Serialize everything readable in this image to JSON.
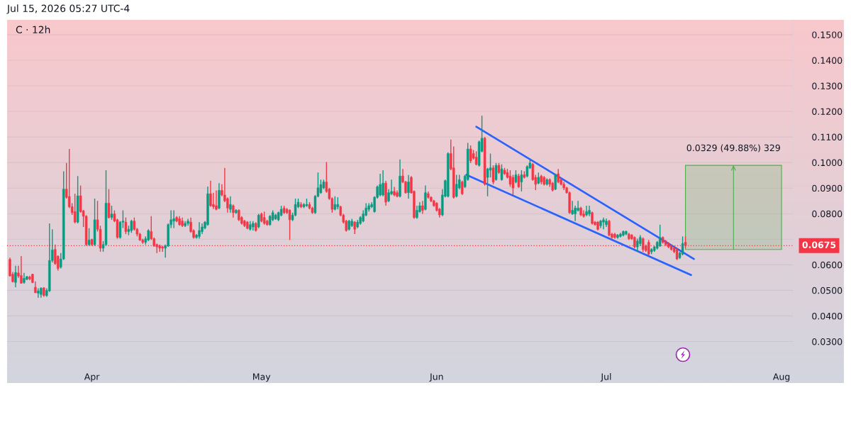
{
  "chart_data": {
    "type": "candlestick",
    "title": "C · 12h",
    "annotations": [
      "Jul 15, 2026 05:27 UTC-4"
    ],
    "x": [
      "2026-03-17T12:00",
      "2026-03-18",
      "2026-03-18T12:00",
      "2026-03-19",
      "2026-03-19T12:00",
      "2026-03-20",
      "2026-03-20T12:00",
      "2026-03-21",
      "2026-03-21T12:00",
      "2026-03-22",
      "2026-03-22T12:00",
      "2026-03-23",
      "2026-03-23T12:00",
      "2026-03-24",
      "2026-03-24T12:00",
      "2026-03-25",
      "2026-03-25T12:00",
      "2026-03-26",
      "2026-03-26T12:00",
      "2026-03-27",
      "2026-03-27T12:00",
      "2026-03-28",
      "2026-03-28T12:00",
      "2026-03-29",
      "2026-03-29T12:00",
      "2026-03-30",
      "2026-03-30T12:00",
      "2026-03-31",
      "2026-03-31T12:00",
      "2026-04-01",
      "2026-04-01T12:00",
      "2026-04-02",
      "2026-04-02T12:00",
      "2026-04-03",
      "2026-04-03T12:00",
      "2026-04-04",
      "2026-04-04T12:00",
      "2026-04-05",
      "2026-04-05T12:00",
      "2026-04-06",
      "2026-04-06T12:00",
      "2026-04-07",
      "2026-04-07T12:00",
      "2026-04-08",
      "2026-04-08T12:00",
      "2026-04-09",
      "2026-04-09T12:00",
      "2026-04-10",
      "2026-04-10T12:00",
      "2026-04-11",
      "2026-04-11T12:00",
      "2026-04-12",
      "2026-04-12T12:00",
      "2026-04-13",
      "2026-04-13T12:00",
      "2026-04-14",
      "2026-04-14T12:00",
      "2026-04-15",
      "2026-04-15T12:00",
      "2026-04-16",
      "2026-04-16T12:00",
      "2026-04-17",
      "2026-04-17T12:00",
      "2026-04-18",
      "2026-04-18T12:00",
      "2026-04-19",
      "2026-04-19T12:00",
      "2026-04-20",
      "2026-04-20T12:00",
      "2026-04-21",
      "2026-04-21T12:00",
      "2026-04-22",
      "2026-04-22T12:00",
      "2026-04-23",
      "2026-04-23T12:00",
      "2026-04-24",
      "2026-04-24T12:00",
      "2026-04-25",
      "2026-04-25T12:00",
      "2026-04-26",
      "2026-04-26T12:00",
      "2026-04-27",
      "2026-04-27T12:00",
      "2026-04-28",
      "2026-04-28T12:00",
      "2026-04-29",
      "2026-04-29T12:00",
      "2026-04-30",
      "2026-04-30T12:00",
      "2026-05-01",
      "2026-05-01T12:00",
      "2026-05-02",
      "2026-05-02T12:00",
      "2026-05-03",
      "2026-05-03T12:00",
      "2026-05-04",
      "2026-05-04T12:00",
      "2026-05-05",
      "2026-05-05T12:00",
      "2026-05-06",
      "2026-05-06T12:00",
      "2026-05-07",
      "2026-05-07T12:00",
      "2026-05-08",
      "2026-05-08T12:00",
      "2026-05-09",
      "2026-05-09T12:00",
      "2026-05-10",
      "2026-05-10T12:00",
      "2026-05-11",
      "2026-05-11T12:00",
      "2026-05-12",
      "2026-05-12T12:00",
      "2026-05-13",
      "2026-05-13T12:00",
      "2026-05-14",
      "2026-05-14T12:00",
      "2026-05-15",
      "2026-05-15T12:00",
      "2026-05-16",
      "2026-05-16T12:00",
      "2026-05-17",
      "2026-05-17T12:00",
      "2026-05-18",
      "2026-05-18T12:00",
      "2026-05-19",
      "2026-05-19T12:00",
      "2026-05-20",
      "2026-05-20T12:00",
      "2026-05-21",
      "2026-05-21T12:00",
      "2026-05-22",
      "2026-05-22T12:00",
      "2026-05-23",
      "2026-05-23T12:00",
      "2026-05-24",
      "2026-05-24T12:00",
      "2026-05-25",
      "2026-05-25T12:00",
      "2026-05-26",
      "2026-05-26T12:00",
      "2026-05-27",
      "2026-05-27T12:00",
      "2026-05-28",
      "2026-05-28T12:00",
      "2026-05-29",
      "2026-05-29T12:00",
      "2026-05-30",
      "2026-05-30T12:00",
      "2026-05-31",
      "2026-05-31T12:00",
      "2026-06-01",
      "2026-06-01T12:00",
      "2026-06-02",
      "2026-06-02T12:00",
      "2026-06-03",
      "2026-06-03T12:00",
      "2026-06-04",
      "2026-06-04T12:00",
      "2026-06-05",
      "2026-06-05T12:00",
      "2026-06-06",
      "2026-06-06T12:00",
      "2026-06-07",
      "2026-06-07T12:00",
      "2026-06-08",
      "2026-06-08T12:00",
      "2026-06-09",
      "2026-06-09T12:00",
      "2026-06-10",
      "2026-06-10T12:00",
      "2026-06-11",
      "2026-06-11T12:00",
      "2026-06-12",
      "2026-06-12T12:00",
      "2026-06-13",
      "2026-06-13T12:00",
      "2026-06-14",
      "2026-06-14T12:00",
      "2026-06-15",
      "2026-06-15T12:00",
      "2026-06-16",
      "2026-06-16T12:00",
      "2026-06-17",
      "2026-06-17T12:00",
      "2026-06-18",
      "2026-06-18T12:00",
      "2026-06-19",
      "2026-06-19T12:00",
      "2026-06-20",
      "2026-06-20T12:00",
      "2026-06-21",
      "2026-06-21T12:00",
      "2026-06-22",
      "2026-06-22T12:00",
      "2026-06-23",
      "2026-06-23T12:00",
      "2026-06-24",
      "2026-06-24T12:00",
      "2026-06-25",
      "2026-06-25T12:00",
      "2026-06-26",
      "2026-06-26T12:00",
      "2026-06-27",
      "2026-06-27T12:00",
      "2026-06-28",
      "2026-06-28T12:00",
      "2026-06-29",
      "2026-06-29T12:00",
      "2026-06-30",
      "2026-06-30T12:00",
      "2026-07-01",
      "2026-07-01T12:00",
      "2026-07-02",
      "2026-07-02T12:00",
      "2026-07-03",
      "2026-07-03T12:00",
      "2026-07-04",
      "2026-07-04T12:00",
      "2026-07-05",
      "2026-07-05T12:00",
      "2026-07-06",
      "2026-07-06T12:00",
      "2026-07-07",
      "2026-07-07T12:00",
      "2026-07-08",
      "2026-07-08T12:00",
      "2026-07-09",
      "2026-07-09T12:00",
      "2026-07-10",
      "2026-07-10T12:00",
      "2026-07-11",
      "2026-07-11T12:00",
      "2026-07-12",
      "2026-07-12T12:00",
      "2026-07-13",
      "2026-07-13T12:00",
      "2026-07-14",
      "2026-07-14T12:00",
      "2026-07-15"
    ],
    "ohlc": [
      [
        0.0621,
        0.0628,
        0.0554,
        0.0557
      ],
      [
        0.0563,
        0.0572,
        0.0531,
        0.0534
      ],
      [
        0.0531,
        0.0596,
        0.0512,
        0.057
      ],
      [
        0.0568,
        0.0596,
        0.0549,
        0.0556
      ],
      [
        0.0558,
        0.0634,
        0.0526,
        0.0528
      ],
      [
        0.0531,
        0.0568,
        0.0526,
        0.0547
      ],
      [
        0.0543,
        0.0556,
        0.054,
        0.0554
      ],
      [
        0.0552,
        0.0557,
        0.054,
        0.0545
      ],
      [
        0.0563,
        0.0565,
        0.0528,
        0.0531
      ],
      [
        0.0512,
        0.0535,
        0.0489,
        0.0491
      ],
      [
        0.0489,
        0.0508,
        0.0471,
        0.0498
      ],
      [
        0.0484,
        0.0512,
        0.0471,
        0.0508
      ],
      [
        0.051,
        0.0512,
        0.0475,
        0.048
      ],
      [
        0.048,
        0.0508,
        0.0475,
        0.05
      ],
      [
        0.0498,
        0.0762,
        0.0494,
        0.0617
      ],
      [
        0.0617,
        0.0739,
        0.0609,
        0.0658
      ],
      [
        0.066,
        0.0679,
        0.06,
        0.0605
      ],
      [
        0.0633,
        0.0637,
        0.0577,
        0.0586
      ],
      [
        0.0591,
        0.0646,
        0.0586,
        0.0623
      ],
      [
        0.0623,
        0.0966,
        0.0619,
        0.0896
      ],
      [
        0.0896,
        0.0998,
        0.0859,
        0.0864
      ],
      [
        0.0867,
        0.1053,
        0.0822,
        0.0827
      ],
      [
        0.0827,
        0.0841,
        0.0795,
        0.0804
      ],
      [
        0.0808,
        0.0878,
        0.0762,
        0.0767
      ],
      [
        0.0767,
        0.0947,
        0.0762,
        0.087
      ],
      [
        0.087,
        0.091,
        0.0804,
        0.0808
      ],
      [
        0.0811,
        0.0815,
        0.0748,
        0.079
      ],
      [
        0.079,
        0.0794,
        0.0674,
        0.0679
      ],
      [
        0.0679,
        0.0743,
        0.0674,
        0.0697
      ],
      [
        0.0699,
        0.0702,
        0.0674,
        0.0679
      ],
      [
        0.0679,
        0.0859,
        0.0674,
        0.0776
      ],
      [
        0.0776,
        0.085,
        0.073,
        0.0739
      ],
      [
        0.0739,
        0.0753,
        0.0651,
        0.0665
      ],
      [
        0.0665,
        0.0693,
        0.0651,
        0.0679
      ],
      [
        0.0679,
        0.097,
        0.0674,
        0.0841
      ],
      [
        0.0841,
        0.0896,
        0.0781,
        0.0785
      ],
      [
        0.0785,
        0.0831,
        0.0776,
        0.0799
      ],
      [
        0.0799,
        0.0813,
        0.0767,
        0.0771
      ],
      [
        0.0776,
        0.078,
        0.0702,
        0.0707
      ],
      [
        0.0707,
        0.0771,
        0.0702,
        0.0767
      ],
      [
        0.0767,
        0.0813,
        0.0744,
        0.0771
      ],
      [
        0.0767,
        0.0785,
        0.072,
        0.073
      ],
      [
        0.073,
        0.0753,
        0.0716,
        0.0739
      ],
      [
        0.0734,
        0.0776,
        0.0725,
        0.0771
      ],
      [
        0.0771,
        0.0785,
        0.0734,
        0.0739
      ],
      [
        0.0739,
        0.0744,
        0.0711,
        0.072
      ],
      [
        0.072,
        0.0725,
        0.0693,
        0.0697
      ],
      [
        0.0697,
        0.0702,
        0.0682,
        0.0688
      ],
      [
        0.0688,
        0.0711,
        0.0679,
        0.0702
      ],
      [
        0.0697,
        0.0739,
        0.0693,
        0.0734
      ],
      [
        0.073,
        0.079,
        0.0697,
        0.0702
      ],
      [
        0.0702,
        0.0707,
        0.067,
        0.0674
      ],
      [
        0.0679,
        0.0683,
        0.0646,
        0.067
      ],
      [
        0.0674,
        0.0679,
        0.0651,
        0.0665
      ],
      [
        0.067,
        0.0674,
        0.0651,
        0.0665
      ],
      [
        0.0665,
        0.0679,
        0.0628,
        0.0674
      ],
      [
        0.0674,
        0.0762,
        0.067,
        0.0757
      ],
      [
        0.0757,
        0.0813,
        0.0744,
        0.0776
      ],
      [
        0.0771,
        0.0813,
        0.0744,
        0.078
      ],
      [
        0.0785,
        0.079,
        0.0767,
        0.0771
      ],
      [
        0.078,
        0.079,
        0.0753,
        0.0757
      ],
      [
        0.0771,
        0.0785,
        0.0748,
        0.0753
      ],
      [
        0.0753,
        0.0771,
        0.0748,
        0.0762
      ],
      [
        0.0762,
        0.078,
        0.0753,
        0.0771
      ],
      [
        0.0767,
        0.0785,
        0.0725,
        0.073
      ],
      [
        0.0734,
        0.0739,
        0.0702,
        0.0707
      ],
      [
        0.0707,
        0.072,
        0.0702,
        0.0716
      ],
      [
        0.0711,
        0.0767,
        0.0702,
        0.0734
      ],
      [
        0.073,
        0.0762,
        0.072,
        0.0748
      ],
      [
        0.0744,
        0.0771,
        0.0739,
        0.0767
      ],
      [
        0.0757,
        0.0906,
        0.0753,
        0.0878
      ],
      [
        0.0878,
        0.0929,
        0.0827,
        0.0831
      ],
      [
        0.0836,
        0.0882,
        0.0818,
        0.0827
      ],
      [
        0.0831,
        0.0891,
        0.0813,
        0.0817
      ],
      [
        0.0822,
        0.0919,
        0.0817,
        0.0891
      ],
      [
        0.0891,
        0.0915,
        0.0868,
        0.0873
      ],
      [
        0.0873,
        0.0979,
        0.0845,
        0.085
      ],
      [
        0.0859,
        0.0864,
        0.0804,
        0.0822
      ],
      [
        0.0817,
        0.0868,
        0.0804,
        0.0836
      ],
      [
        0.0831,
        0.0836,
        0.0785,
        0.0804
      ],
      [
        0.0804,
        0.0817,
        0.0799,
        0.0813
      ],
      [
        0.0813,
        0.0817,
        0.0771,
        0.0776
      ],
      [
        0.0785,
        0.079,
        0.0757,
        0.0762
      ],
      [
        0.0771,
        0.0776,
        0.0748,
        0.0753
      ],
      [
        0.0767,
        0.0771,
        0.0739,
        0.0743
      ],
      [
        0.0739,
        0.0771,
        0.0734,
        0.0757
      ],
      [
        0.0748,
        0.0771,
        0.0734,
        0.0762
      ],
      [
        0.0762,
        0.0767,
        0.073,
        0.0734
      ],
      [
        0.0748,
        0.0799,
        0.0743,
        0.0794
      ],
      [
        0.0799,
        0.0804,
        0.0767,
        0.0771
      ],
      [
        0.0785,
        0.0808,
        0.0757,
        0.0762
      ],
      [
        0.0771,
        0.0776,
        0.0753,
        0.0757
      ],
      [
        0.0757,
        0.0794,
        0.0753,
        0.079
      ],
      [
        0.0776,
        0.0813,
        0.0771,
        0.0804
      ],
      [
        0.078,
        0.0799,
        0.0776,
        0.0794
      ],
      [
        0.0776,
        0.0808,
        0.0771,
        0.0804
      ],
      [
        0.0794,
        0.0831,
        0.079,
        0.0817
      ],
      [
        0.0822,
        0.0831,
        0.0799,
        0.0804
      ],
      [
        0.0817,
        0.0822,
        0.0799,
        0.0804
      ],
      [
        0.0813,
        0.0817,
        0.0697,
        0.0776
      ],
      [
        0.0776,
        0.0804,
        0.0771,
        0.0794
      ],
      [
        0.0794,
        0.0859,
        0.079,
        0.0836
      ],
      [
        0.0827,
        0.0859,
        0.0822,
        0.0845
      ],
      [
        0.0836,
        0.0845,
        0.0822,
        0.0827
      ],
      [
        0.0827,
        0.0841,
        0.0822,
        0.0836
      ],
      [
        0.0831,
        0.0859,
        0.0827,
        0.0836
      ],
      [
        0.0836,
        0.0845,
        0.0817,
        0.0822
      ],
      [
        0.0822,
        0.0827,
        0.0799,
        0.0804
      ],
      [
        0.0804,
        0.0873,
        0.0799,
        0.0868
      ],
      [
        0.0868,
        0.0961,
        0.0864,
        0.0901
      ],
      [
        0.0882,
        0.0933,
        0.0878,
        0.0914
      ],
      [
        0.0901,
        0.0933,
        0.0896,
        0.0924
      ],
      [
        0.0924,
        0.1002,
        0.0882,
        0.0887
      ],
      [
        0.0896,
        0.0901,
        0.0854,
        0.0859
      ],
      [
        0.0859,
        0.0864,
        0.0804,
        0.0817
      ],
      [
        0.0817,
        0.0868,
        0.0813,
        0.0836
      ],
      [
        0.0827,
        0.0864,
        0.0817,
        0.0836
      ],
      [
        0.0827,
        0.0831,
        0.079,
        0.0794
      ],
      [
        0.0794,
        0.0799,
        0.0762,
        0.0767
      ],
      [
        0.0771,
        0.0776,
        0.073,
        0.0734
      ],
      [
        0.0739,
        0.0776,
        0.0734,
        0.0771
      ],
      [
        0.0753,
        0.078,
        0.0748,
        0.0771
      ],
      [
        0.0767,
        0.0771,
        0.072,
        0.0739
      ],
      [
        0.0748,
        0.0776,
        0.0743,
        0.0767
      ],
      [
        0.0762,
        0.079,
        0.0757,
        0.0785
      ],
      [
        0.0771,
        0.0813,
        0.0767,
        0.0799
      ],
      [
        0.0794,
        0.0841,
        0.079,
        0.0822
      ],
      [
        0.0817,
        0.0841,
        0.0808,
        0.0831
      ],
      [
        0.0827,
        0.0845,
        0.0822,
        0.0836
      ],
      [
        0.0808,
        0.0868,
        0.0804,
        0.0864
      ],
      [
        0.0864,
        0.091,
        0.0859,
        0.0905
      ],
      [
        0.0873,
        0.0956,
        0.0868,
        0.0914
      ],
      [
        0.0873,
        0.097,
        0.0868,
        0.0919
      ],
      [
        0.0919,
        0.0928,
        0.0831,
        0.0845
      ],
      [
        0.085,
        0.0896,
        0.0845,
        0.0882
      ],
      [
        0.0878,
        0.0933,
        0.0873,
        0.0887
      ],
      [
        0.0887,
        0.0905,
        0.0868,
        0.0873
      ],
      [
        0.0882,
        0.0891,
        0.0864,
        0.0868
      ],
      [
        0.0868,
        0.1012,
        0.0864,
        0.0947
      ],
      [
        0.0947,
        0.0975,
        0.0919,
        0.0924
      ],
      [
        0.0924,
        0.0928,
        0.0878,
        0.0882
      ],
      [
        0.0882,
        0.0951,
        0.0859,
        0.0924
      ],
      [
        0.0942,
        0.0947,
        0.0878,
        0.0882
      ],
      [
        0.0887,
        0.0891,
        0.078,
        0.0785
      ],
      [
        0.0785,
        0.0831,
        0.078,
        0.0813
      ],
      [
        0.0808,
        0.0845,
        0.0804,
        0.0831
      ],
      [
        0.0831,
        0.085,
        0.0799,
        0.0813
      ],
      [
        0.0817,
        0.091,
        0.0813,
        0.0882
      ],
      [
        0.0878,
        0.0887,
        0.0859,
        0.0864
      ],
      [
        0.0864,
        0.0868,
        0.0845,
        0.085
      ],
      [
        0.085,
        0.0854,
        0.0827,
        0.0831
      ],
      [
        0.0841,
        0.0845,
        0.0808,
        0.0813
      ],
      [
        0.0818,
        0.0822,
        0.0785,
        0.0795
      ],
      [
        0.0795,
        0.0896,
        0.079,
        0.0873
      ],
      [
        0.0868,
        0.0933,
        0.0864,
        0.0929
      ],
      [
        0.0868,
        0.104,
        0.0864,
        0.1035
      ],
      [
        0.1035,
        0.109,
        0.097,
        0.0975
      ],
      [
        0.0979,
        0.1063,
        0.0859,
        0.0864
      ],
      [
        0.0868,
        0.0952,
        0.0864,
        0.0915
      ],
      [
        0.0901,
        0.0952,
        0.0896,
        0.0933
      ],
      [
        0.0924,
        0.0929,
        0.0873,
        0.0878
      ],
      [
        0.0905,
        0.0952,
        0.0901,
        0.0947
      ],
      [
        0.0933,
        0.1077,
        0.0929,
        0.1053
      ],
      [
        0.1053,
        0.1067,
        0.0998,
        0.1007
      ],
      [
        0.1035,
        0.1049,
        0.1012,
        0.1017
      ],
      [
        0.1021,
        0.1044,
        0.0989,
        0.0993
      ],
      [
        0.0989,
        0.1086,
        0.0984,
        0.1081
      ],
      [
        0.1044,
        0.1183,
        0.104,
        0.1095
      ],
      [
        0.1095,
        0.11,
        0.091,
        0.0915
      ],
      [
        0.0942,
        0.0979,
        0.0868,
        0.0975
      ],
      [
        0.097,
        0.1035,
        0.0942,
        0.0979
      ],
      [
        0.0979,
        0.0989,
        0.0915,
        0.0924
      ],
      [
        0.0933,
        0.0998,
        0.0929,
        0.0989
      ],
      [
        0.0989,
        0.0998,
        0.0956,
        0.0961
      ],
      [
        0.0933,
        0.0993,
        0.0929,
        0.0975
      ],
      [
        0.097,
        0.0979,
        0.0952,
        0.0956
      ],
      [
        0.0961,
        0.0975,
        0.0938,
        0.0942
      ],
      [
        0.0947,
        0.097,
        0.0905,
        0.0915
      ],
      [
        0.0942,
        0.0952,
        0.0873,
        0.0901
      ],
      [
        0.0924,
        0.097,
        0.0919,
        0.0952
      ],
      [
        0.0947,
        0.0956,
        0.0901,
        0.0905
      ],
      [
        0.0924,
        0.097,
        0.0887,
        0.0952
      ],
      [
        0.0952,
        0.0966,
        0.0938,
        0.0942
      ],
      [
        0.0947,
        0.0989,
        0.0942,
        0.0984
      ],
      [
        0.0979,
        0.1017,
        0.0975,
        0.0998
      ],
      [
        0.0993,
        0.0998,
        0.0929,
        0.0933
      ],
      [
        0.0942,
        0.0952,
        0.0892,
        0.0915
      ],
      [
        0.0919,
        0.0961,
        0.0915,
        0.0942
      ],
      [
        0.0947,
        0.0952,
        0.0915,
        0.0924
      ],
      [
        0.0942,
        0.0947,
        0.091,
        0.0915
      ],
      [
        0.0915,
        0.0938,
        0.091,
        0.0933
      ],
      [
        0.0933,
        0.0938,
        0.0905,
        0.0915
      ],
      [
        0.0919,
        0.0924,
        0.0887,
        0.0892
      ],
      [
        0.0896,
        0.0956,
        0.0892,
        0.0952
      ],
      [
        0.0956,
        0.0975,
        0.0919,
        0.0924
      ],
      [
        0.0933,
        0.0938,
        0.091,
        0.0915
      ],
      [
        0.0915,
        0.0924,
        0.0892,
        0.0901
      ],
      [
        0.0901,
        0.0905,
        0.0878,
        0.0882
      ],
      [
        0.0882,
        0.0887,
        0.0799,
        0.0804
      ],
      [
        0.0799,
        0.085,
        0.0795,
        0.0813
      ],
      [
        0.0799,
        0.0831,
        0.0771,
        0.0822
      ],
      [
        0.0813,
        0.085,
        0.0808,
        0.0822
      ],
      [
        0.0822,
        0.0827,
        0.079,
        0.0795
      ],
      [
        0.0799,
        0.0813,
        0.0785,
        0.079
      ],
      [
        0.0795,
        0.0831,
        0.079,
        0.0808
      ],
      [
        0.0799,
        0.0831,
        0.079,
        0.0813
      ],
      [
        0.0804,
        0.0808,
        0.0757,
        0.0762
      ],
      [
        0.0767,
        0.0771,
        0.0753,
        0.0757
      ],
      [
        0.0767,
        0.0771,
        0.0734,
        0.0739
      ],
      [
        0.0753,
        0.0776,
        0.0744,
        0.0771
      ],
      [
        0.0767,
        0.0785,
        0.0739,
        0.0776
      ],
      [
        0.0757,
        0.0781,
        0.0748,
        0.0771
      ],
      [
        0.0771,
        0.0776,
        0.0711,
        0.0716
      ],
      [
        0.072,
        0.0725,
        0.0702,
        0.0707
      ],
      [
        0.072,
        0.0725,
        0.0702,
        0.0707
      ],
      [
        0.0707,
        0.072,
        0.0702,
        0.0716
      ],
      [
        0.0711,
        0.0725,
        0.0707,
        0.072
      ],
      [
        0.0716,
        0.0734,
        0.0711,
        0.073
      ],
      [
        0.072,
        0.0734,
        0.0716,
        0.073
      ],
      [
        0.072,
        0.0725,
        0.0697,
        0.0702
      ],
      [
        0.0716,
        0.072,
        0.0697,
        0.0702
      ],
      [
        0.0707,
        0.0711,
        0.0665,
        0.067
      ],
      [
        0.067,
        0.0702,
        0.0651,
        0.0693
      ],
      [
        0.0683,
        0.0716,
        0.0674,
        0.0707
      ],
      [
        0.0702,
        0.0707,
        0.0651,
        0.066
      ],
      [
        0.0674,
        0.0679,
        0.0651,
        0.0656
      ],
      [
        0.0688,
        0.0697,
        0.0637,
        0.0642
      ],
      [
        0.0651,
        0.0665,
        0.0642,
        0.066
      ],
      [
        0.0656,
        0.0674,
        0.0651,
        0.067
      ],
      [
        0.0665,
        0.0693,
        0.066,
        0.0688
      ],
      [
        0.0674,
        0.0757,
        0.067,
        0.0707
      ],
      [
        0.0707,
        0.0711,
        0.0683,
        0.0688
      ],
      [
        0.0693,
        0.0697,
        0.0674,
        0.0679
      ],
      [
        0.0683,
        0.0688,
        0.0665,
        0.067
      ],
      [
        0.0674,
        0.0679,
        0.0656,
        0.066
      ],
      [
        0.0665,
        0.067,
        0.0646,
        0.0651
      ],
      [
        0.066,
        0.0665,
        0.0619,
        0.0623
      ],
      [
        0.0628,
        0.0651,
        0.0623,
        0.0646
      ],
      [
        0.0642,
        0.0711,
        0.0637,
        0.0683
      ],
      [
        0.0688,
        0.0711,
        0.0665,
        0.0675
      ]
    ],
    "colors": [
      "#f23645",
      "#f23645",
      "#089981",
      "#f23645",
      "#f23645",
      "#089981",
      "#089981",
      "#f23645",
      "#f23645",
      "#f23645",
      "#089981",
      "#089981",
      "#f23645",
      "#089981",
      "#089981",
      "#089981",
      "#f23645",
      "#f23645",
      "#089981",
      "#089981",
      "#f23645",
      "#f23645",
      "#f23645",
      "#f23645",
      "#089981",
      "#f23645",
      "#f23645",
      "#f23645",
      "#089981",
      "#f23645",
      "#089981",
      "#f23645",
      "#f23645",
      "#089981",
      "#089981",
      "#f23645",
      "#089981",
      "#f23645",
      "#f23645",
      "#089981",
      "#089981",
      "#f23645",
      "#089981",
      "#089981",
      "#f23645",
      "#f23645",
      "#f23645",
      "#f23645",
      "#089981",
      "#089981",
      "#f23645",
      "#f23645",
      "#f23645",
      "#f23645",
      "#f23645",
      "#089981",
      "#089981",
      "#089981",
      "#089981",
      "#f23645",
      "#f23645",
      "#f23645",
      "#089981",
      "#089981",
      "#f23645",
      "#f23645",
      "#089981",
      "#089981",
      "#089981",
      "#089981",
      "#089981",
      "#f23645",
      "#f23645",
      "#f23645",
      "#089981",
      "#f23645",
      "#f23645",
      "#f23645",
      "#089981",
      "#f23645",
      "#089981",
      "#f23645",
      "#f23645",
      "#f23645",
      "#f23645",
      "#089981",
      "#089981",
      "#f23645",
      "#089981",
      "#f23645",
      "#f23645",
      "#f23645",
      "#089981",
      "#089981",
      "#089981",
      "#089981",
      "#089981",
      "#f23645",
      "#f23645",
      "#f23645",
      "#089981",
      "#089981",
      "#089981",
      "#f23645",
      "#089981",
      "#089981",
      "#f23645",
      "#f23645",
      "#089981",
      "#089981",
      "#089981",
      "#089981",
      "#f23645",
      "#f23645",
      "#f23645",
      "#089981",
      "#089981",
      "#f23645",
      "#f23645",
      "#f23645",
      "#089981",
      "#089981",
      "#f23645",
      "#089981",
      "#089981",
      "#089981",
      "#089981",
      "#089981",
      "#089981",
      "#089981",
      "#089981",
      "#089981",
      "#089981",
      "#f23645",
      "#089981",
      "#089981",
      "#f23645",
      "#f23645",
      "#089981",
      "#f23645",
      "#f23645",
      "#089981",
      "#f23645",
      "#f23645",
      "#089981",
      "#089981",
      "#f23645",
      "#089981",
      "#f23645",
      "#f23645",
      "#f23645",
      "#f23645",
      "#f23645",
      "#089981",
      "#089981",
      "#089981",
      "#f23645",
      "#f23645",
      "#089981",
      "#089981",
      "#f23645",
      "#089981",
      "#089981",
      "#f23645",
      "#f23645",
      "#f23645",
      "#089981",
      "#089981",
      "#f23645",
      "#089981",
      "#089981",
      "#f23645",
      "#089981",
      "#f23645",
      "#089981",
      "#f23645",
      "#f23645",
      "#f23645",
      "#f23645",
      "#089981",
      "#f23645",
      "#089981",
      "#f23645",
      "#089981",
      "#089981",
      "#f23645",
      "#f23645",
      "#089981",
      "#f23645",
      "#f23645",
      "#089981",
      "#f23645",
      "#f23645",
      "#089981",
      "#f23645",
      "#f23645",
      "#f23645",
      "#f23645",
      "#f23645",
      "#089981",
      "#089981",
      "#089981",
      "#f23645",
      "#f23645",
      "#089981",
      "#089981",
      "#f23645",
      "#f23645",
      "#f23645",
      "#089981",
      "#089981",
      "#089981",
      "#f23645",
      "#f23645",
      "#f23645",
      "#089981",
      "#089981",
      "#089981",
      "#089981",
      "#f23645",
      "#f23645",
      "#f23645",
      "#089981",
      "#089981",
      "#f23645",
      "#f23645",
      "#f23645",
      "#089981",
      "#089981",
      "#089981",
      "#089981",
      "#f23645",
      "#f23645",
      "#f23645",
      "#f23645",
      "#f23645",
      "#f23645",
      "#089981",
      "#089981",
      "#f23645"
    ],
    "series": [
      {
        "type": "line",
        "x": [
          "2026-06-08",
          "2026-07-16T12:00"
        ],
        "values": [
          0.114,
          0.0623
        ],
        "color": "#2962ff"
      },
      {
        "type": "line",
        "x": [
          "2026-06-06T06:00",
          "2026-07-16"
        ],
        "values": [
          0.0952,
          0.056
        ],
        "color": "#2962ff"
      },
      {
        "type": "bar",
        "x": [
          "2026-07-23T12:00"
        ],
        "base": [
          0.066
        ],
        "values": [
          0.0329
        ],
        "value_labels": [
          "0.0329 (49.88%) 329"
        ],
        "color": "#4caf50"
      }
    ],
    "xlim": [
      "2026-03-17",
      "2026-08-03"
    ],
    "xticks": [
      {
        "value": "2026-04-01",
        "label": "Apr"
      },
      {
        "value": "2026-05-01",
        "label": "May"
      },
      {
        "value": "2026-06-01",
        "label": "Jun"
      },
      {
        "value": "2026-07-01",
        "label": "Jul"
      },
      {
        "value": "2026-08-01",
        "label": "Aug"
      }
    ],
    "ylim": [
      0.0207,
      0.1558
    ],
    "yticks": [
      {
        "value": 0.03,
        "label": "0.0300"
      },
      {
        "value": 0.04,
        "label": "0.0400"
      },
      {
        "value": 0.05,
        "label": "0.0500"
      },
      {
        "value": 0.06,
        "label": "0.0600"
      },
      {
        "value": 0.07,
        "label": null
      },
      {
        "value": 0.08,
        "label": "0.0800"
      },
      {
        "value": 0.09,
        "label": "0.0900"
      },
      {
        "value": 0.1,
        "label": "0.1000"
      },
      {
        "value": 0.11,
        "label": "0.1100"
      },
      {
        "value": 0.12,
        "label": "0.1200"
      },
      {
        "value": 0.13,
        "label": "0.1300"
      },
      {
        "value": 0.14,
        "label": "0.1400"
      },
      {
        "value": 0.15,
        "label": "0.1500"
      }
    ],
    "grid": "y",
    "ref_lines": [
      {
        "axis": "y",
        "value": 0.0675,
        "label": "0.0675",
        "color": "#f23645",
        "line_style": "dotted"
      }
    ]
  }
}
